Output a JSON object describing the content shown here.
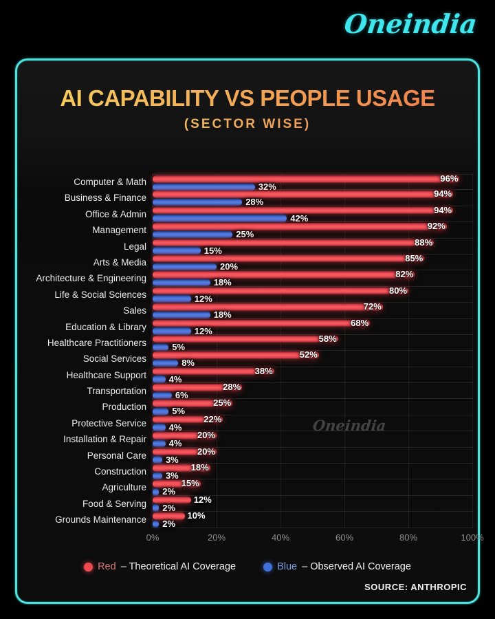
{
  "brand": {
    "logo": "Oneindia",
    "logo_color": "#3ee6ee",
    "watermark": "Oneindia"
  },
  "header": {
    "title": "AI CAPABILITY VS PEOPLE USAGE",
    "subtitle": "(SECTOR WISE)",
    "title_gradient": [
      "#f6cf5e",
      "#ef7f4c"
    ]
  },
  "chart_data": {
    "type": "bar",
    "orientation": "horizontal",
    "title": "AI CAPABILITY VS PEOPLE USAGE (SECTOR WISE)",
    "categories": [
      "Computer & Math",
      "Business & Finance",
      "Office & Admin",
      "Management",
      "Legal",
      "Arts & Media",
      "Architecture & Engineering",
      "Life & Social Sciences",
      "Sales",
      "Education & Library",
      "Healthcare Practitioners",
      "Social Services",
      "Healthcare Support",
      "Transportation",
      "Production",
      "Protective Service",
      "Installation & Repair",
      "Personal Care",
      "Construction",
      "Agriculture",
      "Food & Serving",
      "Grounds Maintenance"
    ],
    "series": [
      {
        "name": "Red – Theoretical AI Coverage",
        "color": "#ef4950",
        "values": [
          96,
          94,
          94,
          92,
          88,
          85,
          82,
          80,
          72,
          68,
          58,
          52,
          38,
          28,
          25,
          22,
          20,
          20,
          18,
          15,
          12,
          10
        ]
      },
      {
        "name": "Blue – Observed AI Coverage",
        "color": "#3f6fd8",
        "values": [
          32,
          28,
          42,
          25,
          15,
          20,
          18,
          12,
          18,
          12,
          5,
          8,
          4,
          6,
          5,
          4,
          4,
          3,
          3,
          2,
          2,
          2
        ]
      }
    ],
    "value_suffix": "%",
    "xlim": [
      0,
      100
    ],
    "x_ticks": [
      "0%",
      "20%",
      "40%",
      "60%",
      "80%",
      "100%"
    ],
    "grid": true,
    "legend_position": "bottom"
  },
  "legend": {
    "items": [
      {
        "swatch": "red",
        "name": "Red",
        "description": "– Theoretical AI Coverage"
      },
      {
        "swatch": "blue",
        "name": "Blue",
        "description": "– Observed AI Coverage"
      }
    ]
  },
  "footer": {
    "source": "SOURCE: ANTHROPIC"
  }
}
